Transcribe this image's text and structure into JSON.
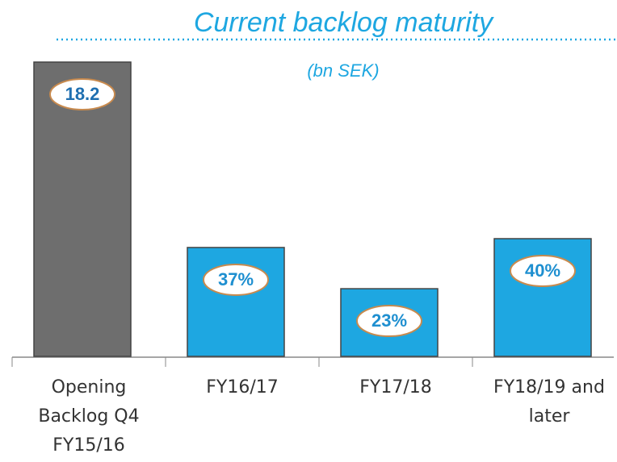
{
  "chart_data": {
    "type": "bar",
    "title": "Current backlog maturity",
    "subtitle": "(bn SEK)",
    "categories": [
      "Opening Backlog Q4 FY15/16",
      "FY16/17",
      "FY17/18",
      "FY18/19 and later"
    ],
    "series": [
      {
        "color": "#6e6e6e",
        "values": [
          18.2,
          null,
          null,
          null
        ]
      },
      {
        "color": "#1ea7e1",
        "axis": "y2",
        "values": [
          null,
          37,
          23,
          40
        ],
        "value_labels": [
          null,
          "37%",
          "23%",
          "40%"
        ]
      }
    ],
    "ylim": [
      0,
      18.2
    ],
    "y2lim": [
      0,
      100
    ]
  }
}
